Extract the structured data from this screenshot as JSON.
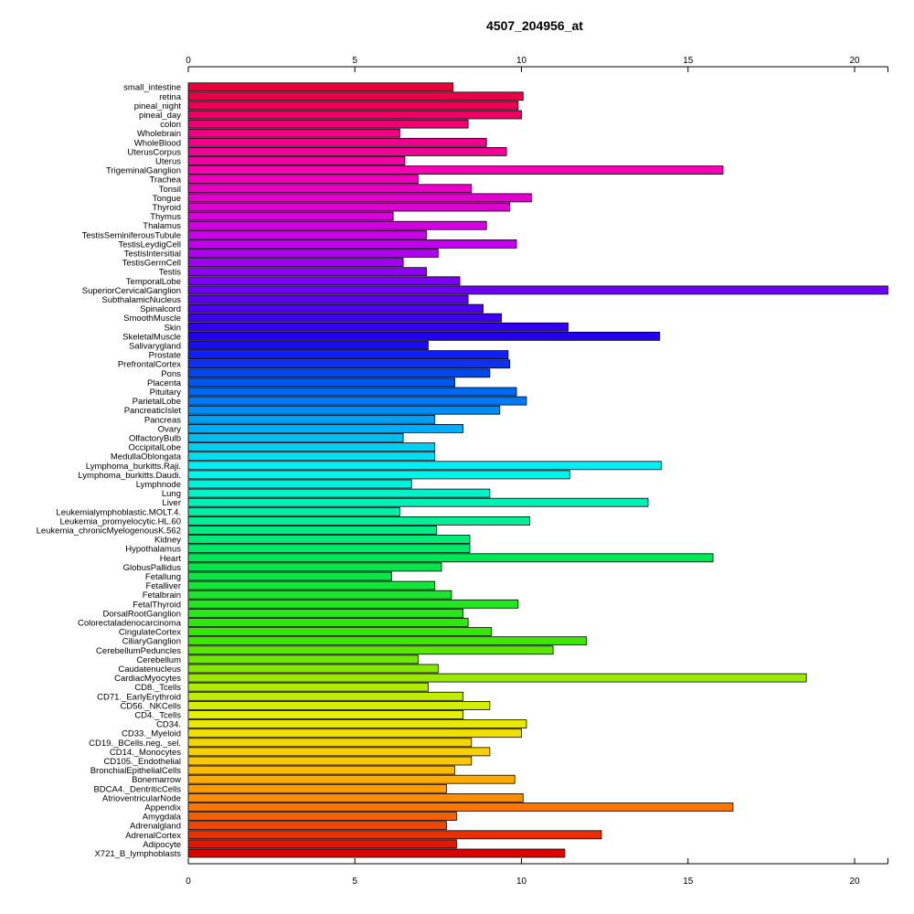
{
  "chart_data": {
    "type": "bar",
    "orientation": "horizontal",
    "title": "4507_204956_at",
    "xlabel": "",
    "ylabel": "",
    "xlim": [
      0,
      21
    ],
    "x_ticks": [
      0,
      5,
      10,
      15,
      20
    ],
    "axis_positions": [
      "top",
      "bottom"
    ],
    "grid": false,
    "color_scheme": "rainbow (red to magenta to blue to cyan to green to yellow to red)",
    "categories": [
      "small_intestine",
      "retina",
      "pineal_night",
      "pineal_day",
      "colon",
      "Wholebrain",
      "WholeBlood",
      "UterusCorpus",
      "Uterus",
      "TrigeminalGanglion",
      "Trachea",
      "Tonsil",
      "Tongue",
      "Thyroid",
      "Thymus",
      "Thalamus",
      "TestisSeminiferousTubule",
      "TestisLeydigCell",
      "TestisIntersitial",
      "TestisGermCell",
      "Testis",
      "TemporalLobe",
      "SuperiorCervicalGanglion",
      "SubthalamicNucleus",
      "Spinalcord",
      "SmoothMuscle",
      "Skin",
      "SkeletalMuscle",
      "Salivarygland",
      "Prostate",
      "PrefrontalCortex",
      "Pons",
      "Placenta",
      "Pituitary",
      "ParietalLobe",
      "PancreaticIslet",
      "Pancreas",
      "Ovary",
      "OlfactoryBulb",
      "OccipitalLobe",
      "MedullaOblongata",
      "Lymphoma_burkitts.Raji.",
      "Lymphoma_burkitts.Daudi.",
      "Lymphnode",
      "Lung",
      "Liver",
      "Leukemialymphoblastic.MOLT.4.",
      "Leukemia_promyelocytic.HL.60",
      "Leukemia_chronicMyelogenousK.562",
      "Kidney",
      "Hypothalamus",
      "Heart",
      "GlobusPallidus",
      "Fetallung",
      "Fetalliver",
      "Fetalbrain",
      "FetalThyroid",
      "DorsalRootGanglion",
      "Colorectaladenocarcinoma",
      "CingulateCortex",
      "CiliaryGanglion",
      "CerebellumPeduncles",
      "Cerebellum",
      "Caudatenucleus",
      "CardiacMyocytes",
      "CD8._Tcells",
      "CD71._EarlyErythroid",
      "CD56._NKCells",
      "CD4._Tcells",
      "CD34.",
      "CD33._Myeloid",
      "CD19._BCells.neg._sel.",
      "CD14._Monocytes",
      "CD105._Endothelial",
      "BronchialEpithelialCells",
      "Bonemarrow",
      "BDCA4._DentriticCells",
      "AtrioventricularNode",
      "Appendix",
      "Amygdala",
      "Adrenalgland",
      "AdrenalCortex",
      "Adipocyte",
      "X721_B_lymphoblasts"
    ],
    "values": [
      7.95,
      10.05,
      9.9,
      10.0,
      8.4,
      6.35,
      8.95,
      9.55,
      6.5,
      16.05,
      6.9,
      8.5,
      10.3,
      9.65,
      6.15,
      8.95,
      7.15,
      9.85,
      7.5,
      6.45,
      7.15,
      8.15,
      21.0,
      8.4,
      8.85,
      9.4,
      11.4,
      14.15,
      7.2,
      9.6,
      9.65,
      9.05,
      8.0,
      9.85,
      10.15,
      9.35,
      7.4,
      8.25,
      6.45,
      7.4,
      7.4,
      14.2,
      11.45,
      6.7,
      9.05,
      13.8,
      6.35,
      10.25,
      7.45,
      8.45,
      8.45,
      15.75,
      7.6,
      6.1,
      7.4,
      7.9,
      9.9,
      8.25,
      8.4,
      9.1,
      11.95,
      10.95,
      6.9,
      7.5,
      18.55,
      7.2,
      8.25,
      9.05,
      8.25,
      10.15,
      10.0,
      8.5,
      9.05,
      8.5,
      8.0,
      9.8,
      7.75,
      10.05,
      16.35,
      8.05,
      7.75,
      12.4,
      8.05,
      11.3
    ]
  }
}
